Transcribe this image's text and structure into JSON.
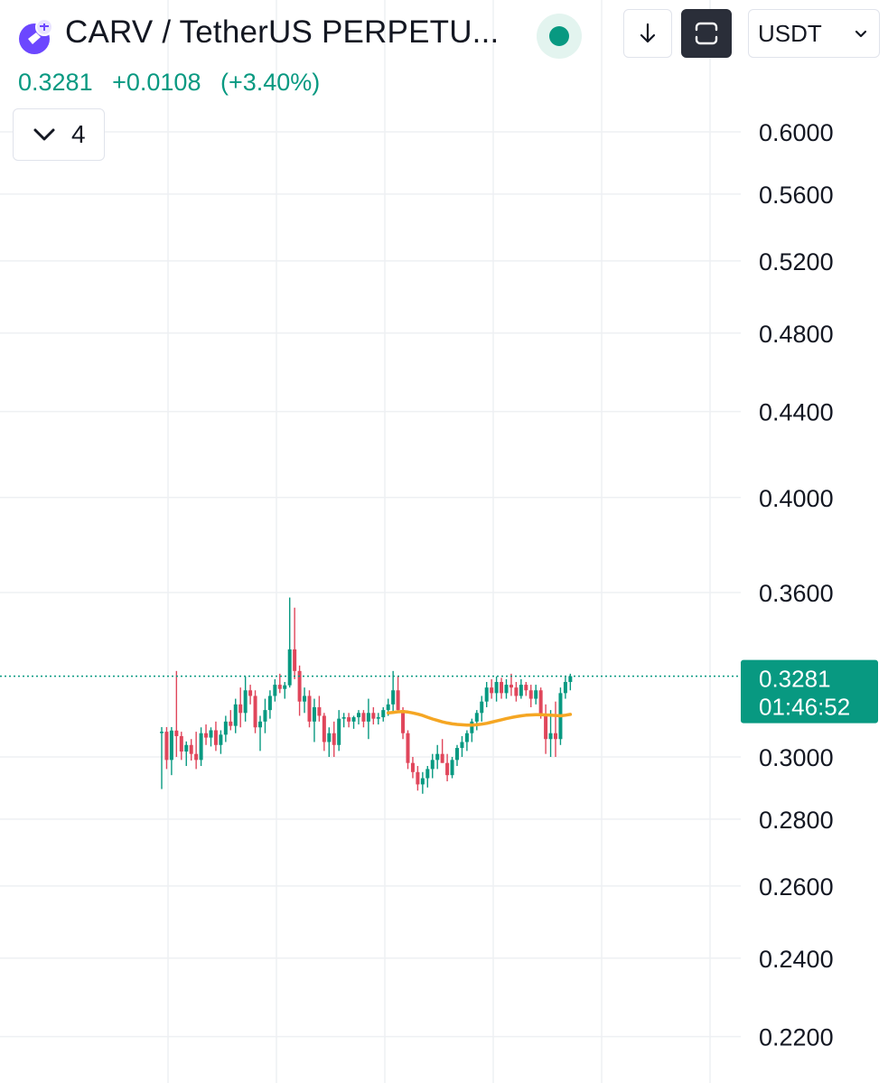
{
  "header": {
    "symbol_title": "CARV / TetherUS PERPETU...",
    "logo_icon": "carv-logo-icon",
    "status": "live",
    "currency_label": "USDT"
  },
  "price": {
    "last": "0.3281",
    "change": "+0.0108",
    "change_percent": "(+3.40%)",
    "color": "#089981"
  },
  "indicators": {
    "collapsed_count": "4"
  },
  "chart_data": {
    "type": "candlestick",
    "y_axis": {
      "ticks": [
        "0.6000",
        "0.5600",
        "0.5200",
        "0.4800",
        "0.4400",
        "0.4000",
        "0.3600",
        "0.3000",
        "0.2800",
        "0.2600",
        "0.2400",
        "0.2200"
      ],
      "scale": "log"
    },
    "current_price_label": {
      "price": "0.3281",
      "countdown": "01:46:52"
    },
    "colors": {
      "up": "#089981",
      "down": "#e0465b",
      "ma": "#f5a623",
      "price_label_bg": "#089981"
    },
    "grid": true,
    "candles": [
      [
        0.3085,
        0.3101,
        0.2895,
        0.3085
      ],
      [
        0.3085,
        0.3101,
        0.296,
        0.299
      ],
      [
        0.299,
        0.3101,
        0.294,
        0.3089
      ],
      [
        0.3089,
        0.33,
        0.3,
        0.307
      ],
      [
        0.307,
        0.3085,
        0.299,
        0.3018
      ],
      [
        0.3018,
        0.3052,
        0.297,
        0.304
      ],
      [
        0.304,
        0.306,
        0.2988,
        0.301
      ],
      [
        0.301,
        0.3085,
        0.296,
        0.299
      ],
      [
        0.299,
        0.31,
        0.297,
        0.308
      ],
      [
        0.308,
        0.311,
        0.304,
        0.3065
      ],
      [
        0.3065,
        0.31,
        0.3035,
        0.309
      ],
      [
        0.309,
        0.312,
        0.302,
        0.304
      ],
      [
        0.304,
        0.309,
        0.301,
        0.3075
      ],
      [
        0.3075,
        0.314,
        0.305,
        0.312
      ],
      [
        0.312,
        0.316,
        0.309,
        0.3105
      ],
      [
        0.3105,
        0.32,
        0.308,
        0.318
      ],
      [
        0.318,
        0.324,
        0.31,
        0.315
      ],
      [
        0.315,
        0.328,
        0.312,
        0.323
      ],
      [
        0.323,
        0.325,
        0.318,
        0.321
      ],
      [
        0.321,
        0.323,
        0.308,
        0.31
      ],
      [
        0.31,
        0.314,
        0.302,
        0.312
      ],
      [
        0.312,
        0.32,
        0.308,
        0.316
      ],
      [
        0.316,
        0.323,
        0.313,
        0.321
      ],
      [
        0.321,
        0.327,
        0.319,
        0.325
      ],
      [
        0.325,
        0.329,
        0.322,
        0.3235
      ],
      [
        0.3235,
        0.326,
        0.32,
        0.3248
      ],
      [
        0.3248,
        0.358,
        0.324,
        0.338
      ],
      [
        0.338,
        0.354,
        0.327,
        0.33
      ],
      [
        0.33,
        0.332,
        0.314,
        0.319
      ],
      [
        0.319,
        0.324,
        0.315,
        0.321
      ],
      [
        0.321,
        0.323,
        0.31,
        0.312
      ],
      [
        0.312,
        0.32,
        0.305,
        0.317
      ],
      [
        0.317,
        0.321,
        0.312,
        0.314
      ],
      [
        0.314,
        0.315,
        0.302,
        0.305
      ],
      [
        0.305,
        0.31,
        0.3,
        0.308
      ],
      [
        0.308,
        0.312,
        0.3,
        0.304
      ],
      [
        0.304,
        0.316,
        0.302,
        0.313
      ],
      [
        0.313,
        0.315,
        0.31,
        0.3135
      ],
      [
        0.3135,
        0.315,
        0.31,
        0.312
      ],
      [
        0.312,
        0.314,
        0.3095,
        0.3135
      ],
      [
        0.3135,
        0.316,
        0.311,
        0.315
      ],
      [
        0.315,
        0.316,
        0.31,
        0.312
      ],
      [
        0.312,
        0.32,
        0.306,
        0.315
      ],
      [
        0.315,
        0.317,
        0.311,
        0.313
      ],
      [
        0.313,
        0.315,
        0.311,
        0.3135
      ],
      [
        0.3135,
        0.317,
        0.312,
        0.316
      ],
      [
        0.316,
        0.32,
        0.314,
        0.318
      ],
      [
        0.318,
        0.33,
        0.315,
        0.323
      ],
      [
        0.323,
        0.328,
        0.315,
        0.316
      ],
      [
        0.316,
        0.317,
        0.306,
        0.308
      ],
      [
        0.308,
        0.309,
        0.296,
        0.298
      ],
      [
        0.298,
        0.3,
        0.293,
        0.295
      ],
      [
        0.295,
        0.297,
        0.289,
        0.291
      ],
      [
        0.291,
        0.295,
        0.288,
        0.293
      ],
      [
        0.293,
        0.297,
        0.29,
        0.296
      ],
      [
        0.296,
        0.301,
        0.293,
        0.299
      ],
      [
        0.299,
        0.304,
        0.296,
        0.301
      ],
      [
        0.301,
        0.306,
        0.298,
        0.298
      ],
      [
        0.298,
        0.301,
        0.292,
        0.294
      ],
      [
        0.294,
        0.3,
        0.293,
        0.299
      ],
      [
        0.299,
        0.304,
        0.297,
        0.303
      ],
      [
        0.303,
        0.307,
        0.3,
        0.305
      ],
      [
        0.305,
        0.309,
        0.302,
        0.308
      ],
      [
        0.308,
        0.313,
        0.305,
        0.312
      ],
      [
        0.312,
        0.316,
        0.309,
        0.315
      ],
      [
        0.315,
        0.321,
        0.312,
        0.319
      ],
      [
        0.319,
        0.326,
        0.317,
        0.324
      ],
      [
        0.324,
        0.327,
        0.32,
        0.322
      ],
      [
        0.322,
        0.328,
        0.319,
        0.326
      ],
      [
        0.326,
        0.3275,
        0.32,
        0.322
      ],
      [
        0.322,
        0.327,
        0.32,
        0.325
      ],
      [
        0.325,
        0.329,
        0.321,
        0.324
      ],
      [
        0.324,
        0.326,
        0.319,
        0.321
      ],
      [
        0.321,
        0.327,
        0.32,
        0.325
      ],
      [
        0.325,
        0.326,
        0.321,
        0.323
      ],
      [
        0.323,
        0.325,
        0.317,
        0.32
      ],
      [
        0.32,
        0.325,
        0.318,
        0.323
      ],
      [
        0.323,
        0.324,
        0.313,
        0.314
      ],
      [
        0.314,
        0.318,
        0.301,
        0.306
      ],
      [
        0.306,
        0.316,
        0.3,
        0.308
      ],
      [
        0.308,
        0.319,
        0.3,
        0.306
      ],
      [
        0.306,
        0.324,
        0.304,
        0.322
      ],
      [
        0.322,
        0.328,
        0.32,
        0.326
      ],
      [
        0.326,
        0.329,
        0.323,
        0.3281
      ]
    ],
    "ma_line": {
      "start_index": 46,
      "values": [
        0.315,
        0.3152,
        0.3154,
        0.3155,
        0.3153,
        0.315,
        0.3146,
        0.3141,
        0.3135,
        0.3129,
        0.3124,
        0.3119,
        0.3115,
        0.3112,
        0.311,
        0.3109,
        0.3108,
        0.3108,
        0.3109,
        0.3111,
        0.3114,
        0.3118,
        0.3122,
        0.3126,
        0.313,
        0.3134,
        0.3137,
        0.314,
        0.3142,
        0.3143,
        0.3144,
        0.3144,
        0.3143,
        0.3142,
        0.3141,
        0.314,
        0.3142,
        0.3145
      ]
    }
  }
}
